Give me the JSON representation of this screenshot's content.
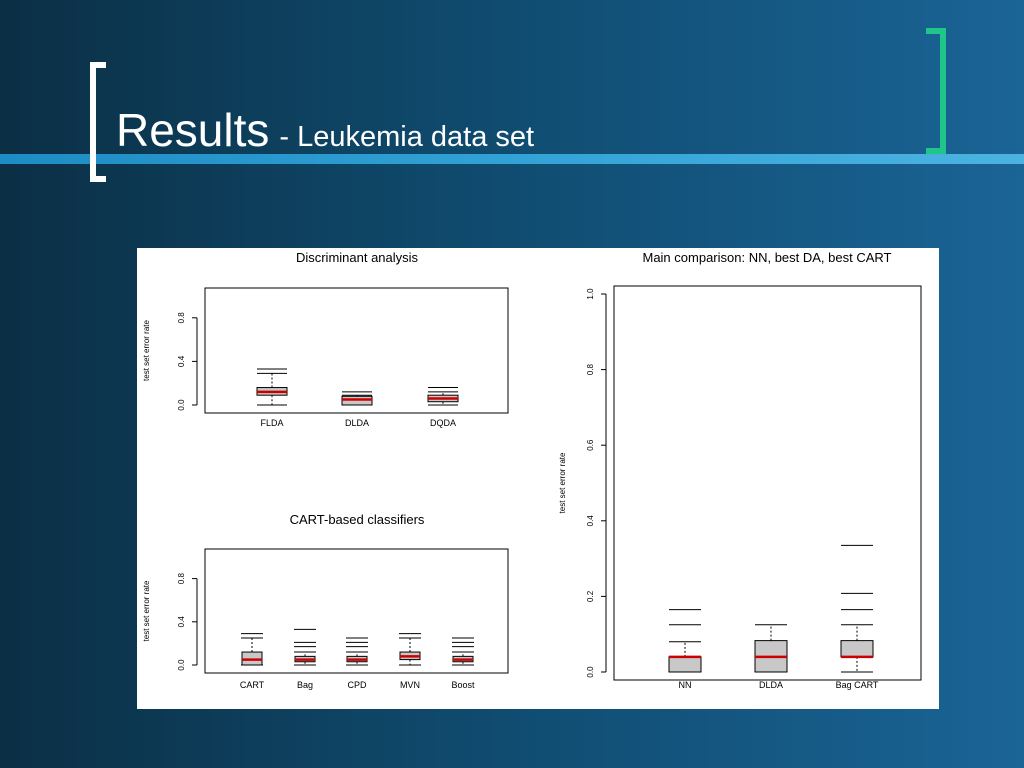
{
  "slide": {
    "title": "Results",
    "subtitle": "- Leukemia data set"
  },
  "colors": {
    "background_left": "#0b2f45",
    "background_right": "#1a6496",
    "accent_line": "#37a6d9",
    "bracket_left": "#ffffff",
    "bracket_right": "#20c58a",
    "median": "#cc0000",
    "box_fill": "#c8c8c8"
  },
  "chart_data": [
    {
      "type": "box",
      "title": "Discriminant analysis",
      "ylabel": "test set error rate",
      "ylim": [
        0,
        1.0
      ],
      "yticks": [
        "0.0",
        "0.4",
        "0.8"
      ],
      "categories": [
        "FLDA",
        "DLDA",
        "DQDA"
      ],
      "boxes": [
        {
          "low": 0.0,
          "q1": 0.09,
          "median": 0.12,
          "q3": 0.16,
          "high": 0.29,
          "outliers": [
            0.33
          ]
        },
        {
          "low": 0.0,
          "q1": 0.0,
          "median": 0.05,
          "q3": 0.08,
          "high": 0.09,
          "outliers": [
            0.12
          ]
        },
        {
          "low": 0.0,
          "q1": 0.03,
          "median": 0.06,
          "q3": 0.09,
          "high": 0.12,
          "outliers": [
            0.16
          ]
        }
      ]
    },
    {
      "type": "box",
      "title": "CART-based classifiers",
      "ylabel": "test set error rate",
      "ylim": [
        0,
        1.0
      ],
      "yticks": [
        "0.0",
        "0.4",
        "0.8"
      ],
      "categories": [
        "CART",
        "Bag",
        "CPD",
        "MVN",
        "Boost"
      ],
      "boxes": [
        {
          "low": 0.0,
          "q1": 0.0,
          "median": 0.05,
          "q3": 0.12,
          "high": 0.25,
          "outliers": [
            0.29
          ]
        },
        {
          "low": 0.0,
          "q1": 0.03,
          "median": 0.05,
          "q3": 0.08,
          "high": 0.12,
          "outliers": [
            0.17,
            0.21,
            0.33
          ]
        },
        {
          "low": 0.0,
          "q1": 0.03,
          "median": 0.05,
          "q3": 0.08,
          "high": 0.12,
          "outliers": [
            0.17,
            0.21,
            0.25
          ]
        },
        {
          "low": 0.0,
          "q1": 0.05,
          "median": 0.08,
          "q3": 0.12,
          "high": 0.25,
          "outliers": [
            0.29
          ]
        },
        {
          "low": 0.0,
          "q1": 0.03,
          "median": 0.05,
          "q3": 0.08,
          "high": 0.12,
          "outliers": [
            0.17,
            0.21,
            0.25
          ]
        }
      ]
    },
    {
      "type": "box",
      "title": "Main comparison: NN, best DA, best CART",
      "ylabel": "test set error rate",
      "ylim": [
        0,
        1.0
      ],
      "yticks": [
        "0.0",
        "0.2",
        "0.4",
        "0.6",
        "0.8",
        "1.0"
      ],
      "categories": [
        "NN",
        "DLDA",
        "Bag CART"
      ],
      "boxes": [
        {
          "low": 0.0,
          "q1": 0.0,
          "median": 0.04,
          "q3": 0.04,
          "high": 0.08,
          "outliers": [
            0.125,
            0.165
          ]
        },
        {
          "low": 0.0,
          "q1": 0.0,
          "median": 0.04,
          "q3": 0.083,
          "high": 0.125,
          "outliers": []
        },
        {
          "low": 0.0,
          "q1": 0.04,
          "median": 0.04,
          "q3": 0.083,
          "high": 0.125,
          "outliers": [
            0.165,
            0.208,
            0.335
          ]
        }
      ]
    }
  ]
}
